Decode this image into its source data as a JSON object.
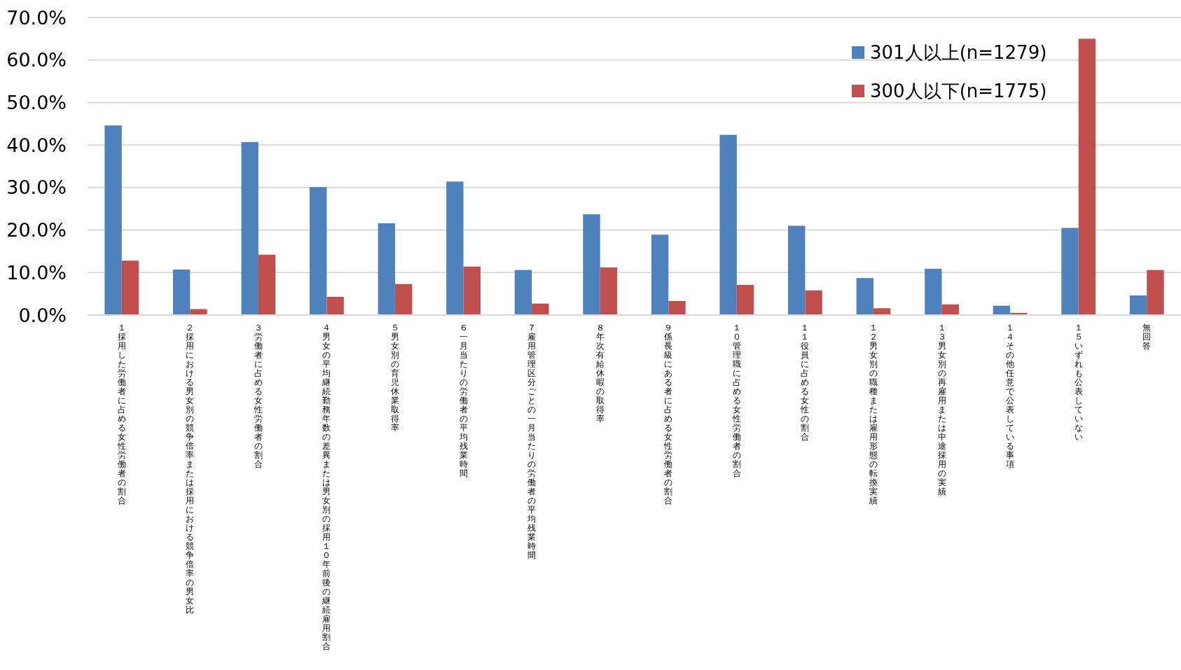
{
  "chart_data": {
    "type": "bar",
    "categories": [
      "１採用した労働者に占める女性労働者の割合",
      "２採用における男女別の競争倍率または採用における競争倍率の男女比",
      "３労働者に占める女性労働者の割合",
      "４男女の平均継続勤務年数の差異または男女別の採用１０年前後の継続雇用割合",
      "５男女別の育児休業取得率",
      "６一月当たりの労働者の平均残業時間",
      "７雇用管理区分ごとの一月当たりの労働者の平均残業時間",
      "８年次有給休暇の取得率",
      "９係長級にある者に占める女性労働者の割合",
      "１０管理職に占める女性労働者の割合",
      "１１役員に占める女性の割合",
      "１２男女別の職種または雇用形態の転換実績",
      "１３男女別の再雇用または中途採用の実績",
      "１４その他任意で公表している事項",
      "１５いずれも公表していない",
      "無回答"
    ],
    "series": [
      {
        "name": "301人以上(n=1279)",
        "color": "#4f81bd",
        "values": [
          44.6,
          10.7,
          40.7,
          30.1,
          21.6,
          31.4,
          10.6,
          23.7,
          18.9,
          42.4,
          21.0,
          8.7,
          10.9,
          2.2,
          20.5,
          4.6
        ]
      },
      {
        "name": "300人以下(n=1775)",
        "color": "#c0504d",
        "values": [
          12.8,
          1.4,
          14.2,
          4.3,
          7.3,
          11.4,
          2.7,
          11.2,
          3.3,
          7.1,
          5.8,
          1.6,
          2.5,
          0.5,
          65.0,
          10.6
        ]
      }
    ],
    "ylim": [
      0,
      70
    ],
    "yticks": [
      {
        "value": 0,
        "label": "0.0%"
      },
      {
        "value": 10,
        "label": "10.0%"
      },
      {
        "value": 20,
        "label": "20.0%"
      },
      {
        "value": 30,
        "label": "30.0%"
      },
      {
        "value": 40,
        "label": "40.0%"
      },
      {
        "value": 50,
        "label": "50.0%"
      },
      {
        "value": 60,
        "label": "60.0%"
      },
      {
        "value": 70,
        "label": "70.0%"
      }
    ],
    "grid": "y",
    "legend": "top right"
  }
}
